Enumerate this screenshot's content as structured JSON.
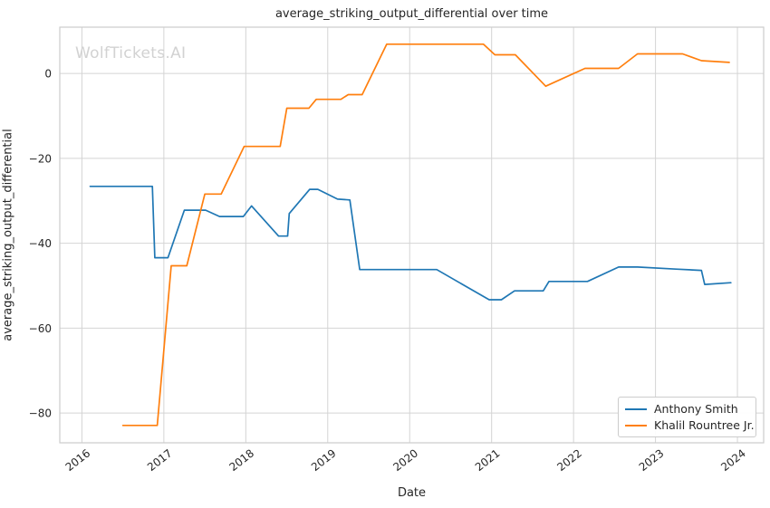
{
  "watermark": "WolfTickets.AI",
  "chart_data": {
    "type": "line",
    "title": "average_striking_output_differential over time",
    "xlabel": "Date",
    "ylabel": "average_striking_output_differential",
    "xlim": [
      2015.73,
      2024.32
    ],
    "ylim": [
      -87,
      10.9
    ],
    "grid": true,
    "legend_position": "lower right",
    "x_ticks": {
      "values": [
        2016,
        2017,
        2018,
        2019,
        2020,
        2021,
        2022,
        2023,
        2024
      ],
      "labels": [
        "2016",
        "2017",
        "2018",
        "2019",
        "2020",
        "2021",
        "2022",
        "2023",
        "2024"
      ]
    },
    "y_ticks": {
      "values": [
        0,
        -20,
        -40,
        -60,
        -80
      ],
      "labels": [
        "0",
        "−20",
        "−40",
        "−60",
        "−80"
      ]
    },
    "grid_color": "#d4d4d4",
    "spine_color": "#cccccc",
    "tick_label_color": "#262626",
    "series": [
      {
        "name": "Anthony Smith",
        "color": "#1f77b4",
        "points": [
          [
            2016.1,
            -26.6
          ],
          [
            2016.86,
            -26.6
          ],
          [
            2016.89,
            -43.4
          ],
          [
            2017.05,
            -43.4
          ],
          [
            2017.25,
            -32.2
          ],
          [
            2017.51,
            -32.2
          ],
          [
            2017.68,
            -33.7
          ],
          [
            2017.97,
            -33.7
          ],
          [
            2018.07,
            -31.2
          ],
          [
            2018.4,
            -38.3
          ],
          [
            2018.51,
            -38.3
          ],
          [
            2018.53,
            -33.0
          ],
          [
            2018.78,
            -27.3
          ],
          [
            2018.88,
            -27.3
          ],
          [
            2019.12,
            -29.6
          ],
          [
            2019.27,
            -29.8
          ],
          [
            2019.39,
            -46.2
          ],
          [
            2020.33,
            -46.2
          ],
          [
            2020.97,
            -53.3
          ],
          [
            2021.12,
            -53.3
          ],
          [
            2021.28,
            -51.2
          ],
          [
            2021.63,
            -51.2
          ],
          [
            2021.7,
            -49.0
          ],
          [
            2022.17,
            -49.0
          ],
          [
            2022.55,
            -45.6
          ],
          [
            2022.78,
            -45.6
          ],
          [
            2023.25,
            -46.1
          ],
          [
            2023.56,
            -46.4
          ],
          [
            2023.6,
            -49.7
          ],
          [
            2023.92,
            -49.3
          ]
        ]
      },
      {
        "name": "Khalil Rountree Jr.",
        "color": "#ff7f0e",
        "points": [
          [
            2016.5,
            -82.9
          ],
          [
            2016.92,
            -82.9
          ],
          [
            2017.09,
            -45.3
          ],
          [
            2017.28,
            -45.3
          ],
          [
            2017.5,
            -28.4
          ],
          [
            2017.7,
            -28.4
          ],
          [
            2017.98,
            -17.2
          ],
          [
            2018.42,
            -17.2
          ],
          [
            2018.5,
            -8.2
          ],
          [
            2018.77,
            -8.2
          ],
          [
            2018.86,
            -6.1
          ],
          [
            2019.16,
            -6.1
          ],
          [
            2019.25,
            -5.0
          ],
          [
            2019.42,
            -5.0
          ],
          [
            2019.72,
            6.9
          ],
          [
            2020.9,
            6.9
          ],
          [
            2021.04,
            4.4
          ],
          [
            2021.29,
            4.4
          ],
          [
            2021.66,
            -3.0
          ],
          [
            2022.14,
            1.2
          ],
          [
            2022.55,
            1.2
          ],
          [
            2022.78,
            4.6
          ],
          [
            2023.33,
            4.6
          ],
          [
            2023.56,
            3.0
          ],
          [
            2023.9,
            2.6
          ]
        ]
      }
    ]
  }
}
